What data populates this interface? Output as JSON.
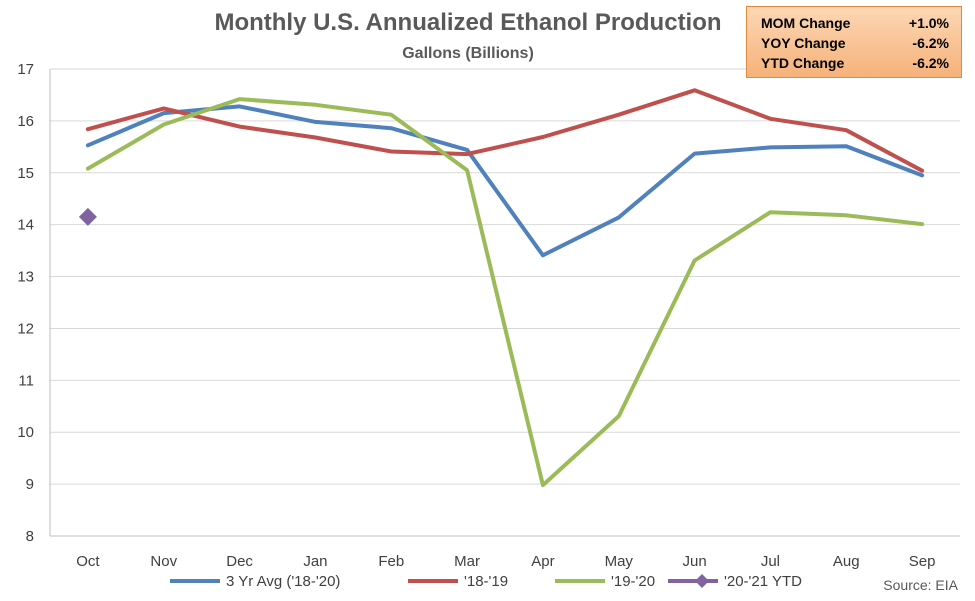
{
  "chart_data": {
    "type": "line",
    "title": "Monthly U.S. Annualized Ethanol Production",
    "subtitle": "Gallons (Billions)",
    "categories": [
      "Oct",
      "Nov",
      "Dec",
      "Jan",
      "Feb",
      "Mar",
      "Apr",
      "May",
      "Jun",
      "Jul",
      "Aug",
      "Sep"
    ],
    "ylim": [
      8,
      17
    ],
    "yticks": [
      8,
      9,
      10,
      11,
      12,
      13,
      14,
      15,
      16,
      17
    ],
    "grid": true,
    "legend_position": "bottom",
    "series": [
      {
        "name": "3 Yr Avg ('18-'20)",
        "color": "#4f81bd",
        "values": [
          15.53,
          16.15,
          16.28,
          15.98,
          15.86,
          15.44,
          13.41,
          14.14,
          15.37,
          15.49,
          15.51,
          14.95
        ]
      },
      {
        "name": "'18-'19",
        "color": "#c0504d",
        "values": [
          15.84,
          16.24,
          15.89,
          15.68,
          15.41,
          15.36,
          15.69,
          16.12,
          16.59,
          16.04,
          15.82,
          15.04
        ]
      },
      {
        "name": "'19-'20",
        "color": "#9bbb59",
        "values": [
          15.08,
          15.93,
          16.42,
          16.31,
          16.12,
          15.05,
          8.98,
          10.31,
          13.31,
          14.24,
          14.18,
          14.01
        ]
      },
      {
        "name": "'20-'21 YTD",
        "color": "#8064a2",
        "marker": "diamond",
        "values": [
          14.15,
          null,
          null,
          null,
          null,
          null,
          null,
          null,
          null,
          null,
          null,
          null
        ]
      }
    ],
    "source": "Source: EIA"
  },
  "stats": [
    {
      "label": "MOM Change",
      "value": "+1.0%"
    },
    {
      "label": "YOY Change",
      "value": "-6.2%"
    },
    {
      "label": "YTD Change",
      "value": "-6.2%"
    }
  ]
}
